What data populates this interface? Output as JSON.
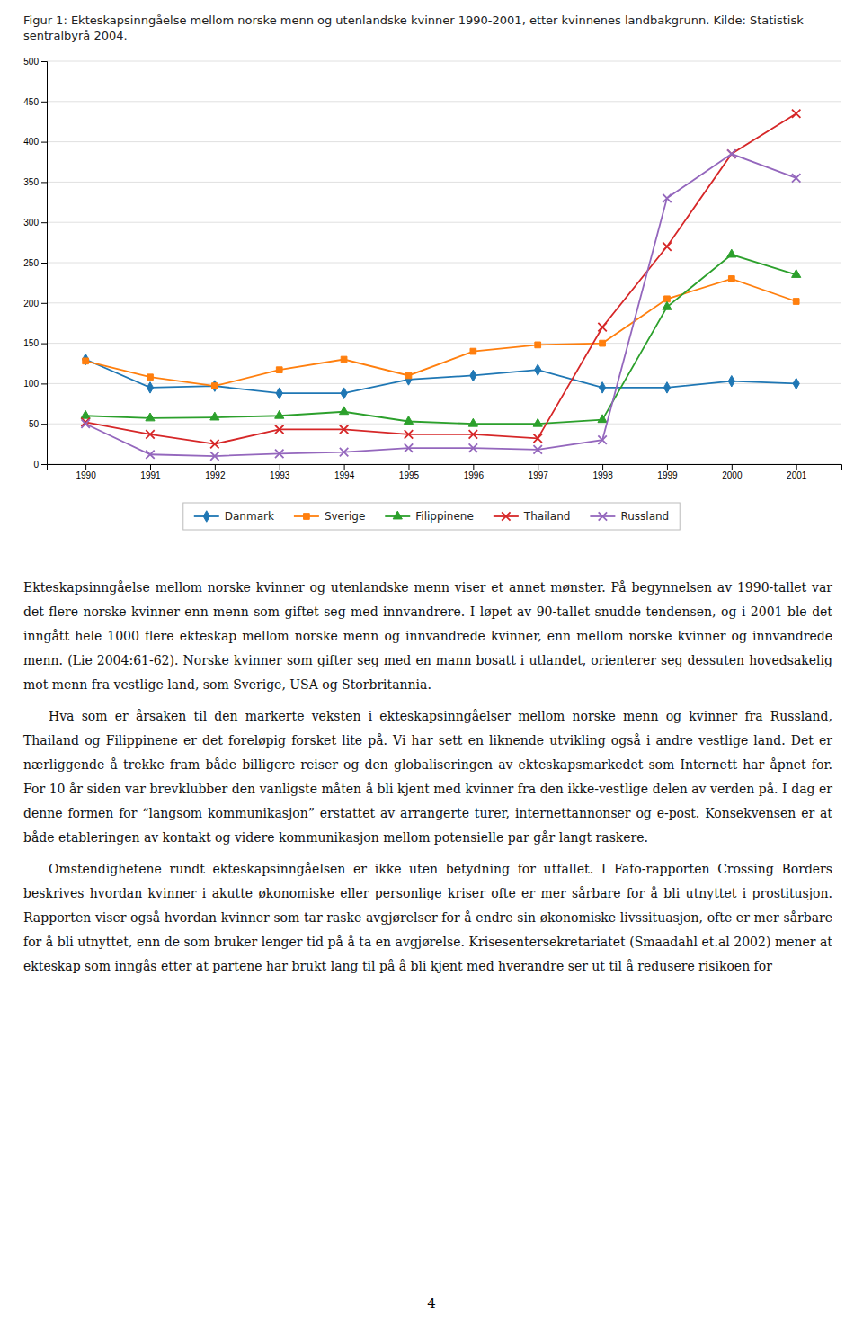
{
  "chart_data": {
    "type": "line",
    "title": "Figur 1: Ekteskapsinngåelse mellom norske menn og utenlandske kvinner 1990-2001, etter kvinnenes landbakgrunn. Kilde: Statistisk sentralbyrå 2004.",
    "x": [
      1990,
      1991,
      1992,
      1993,
      1994,
      1995,
      1996,
      1997,
      1998,
      1999,
      2000,
      2001
    ],
    "xlim": [
      1989.4,
      2001.7
    ],
    "xticks": [
      1990,
      1991,
      1992,
      1993,
      1994,
      1995,
      1996,
      1997,
      1998,
      1999,
      2000,
      2001
    ],
    "ylim": [
      0,
      500
    ],
    "yticks": [
      0,
      50,
      100,
      150,
      200,
      250,
      300,
      350,
      400,
      450,
      500
    ],
    "grid": true,
    "legend": "bottom",
    "series": [
      {
        "name": "Danmark",
        "marker": "diamond",
        "values": [
          130,
          95,
          97,
          88,
          88,
          105,
          110,
          117,
          95,
          95,
          103,
          100
        ]
      },
      {
        "name": "Sverige",
        "marker": "square",
        "values": [
          128,
          108,
          97,
          117,
          130,
          110,
          140,
          148,
          150,
          205,
          230,
          202
        ]
      },
      {
        "name": "Filippinene",
        "marker": "triangle",
        "values": [
          60,
          57,
          58,
          60,
          65,
          53,
          50,
          50,
          55,
          195,
          260,
          235
        ]
      },
      {
        "name": "Thailand",
        "marker": "x",
        "values": [
          52,
          37,
          25,
          43,
          43,
          37,
          37,
          32,
          170,
          270,
          385,
          435
        ]
      },
      {
        "name": "Russland",
        "marker": "x",
        "values": [
          50,
          12,
          10,
          13,
          15,
          20,
          20,
          18,
          30,
          330,
          385,
          355
        ]
      }
    ],
    "annotations": [
      "Ekteskapsinngåelse mellom norske kvinner og utenlandske menn viser et annet mønster. På begynnelsen av 1990-tallet var det flere norske kvinner enn menn som giftet seg med innvandrere. I løpet av 90-tallet snudde tendensen, og i 2001 ble det inngått hele 1000 flere ekteskap mellom norske menn og innvandrede kvinner, enn mellom norske kvinner og innvandrede menn. (Lie 2004:61-62). Norske kvinner som gifter seg med en mann bosatt i utlandet, orienterer seg dessuten hovedsakelig mot menn fra vestlige land, som Sverige, USA og Storbritannia.",
      "Hva som er årsaken til den markerte veksten i ekteskapsinngåelser mellom norske menn og kvinner fra Russland, Thailand og Filippinene er det foreløpig forsket lite på. Vi har sett en liknende utvikling også i andre vestlige land. Det er nærliggende å trekke fram både billigere reiser og den globaliseringen av ekteskapsmarkedet som Internett har åpnet for. For 10 år siden var brevklubber den vanligste måten å bli kjent med kvinner fra den ikke-vestlige delen av verden på. I dag er denne formen for “langsom kommunikasjon” erstattet av arrangerte turer, internettannonser og e-post. Konsekvensen er at både etableringen av kontakt og videre kommunikasjon mellom potensielle par går langt raskere.",
      "Omstendighetene rundt ekteskapsinngåelsen er ikke uten betydning for utfallet. I Fafo-rapporten Crossing Borders beskrives hvordan kvinner i akutte økonomiske eller personlige kriser ofte er mer sårbare for å bli utnyttet i prostitusjon. Rapporten viser også hvordan kvinner som tar raske avgjørelser for å endre sin økonomiske livssituasjon, ofte er mer sårbare for å bli utnyttet, enn de som bruker lenger tid på å ta en avgjørelse. Krisesentersekretariatet (Smaadahl et.al 2002) mener at ekteskap som inngås etter at partene har brukt lang til på å bli kjent med hverandre ser ut til å redusere risikoen for",
      "4"
    ]
  }
}
